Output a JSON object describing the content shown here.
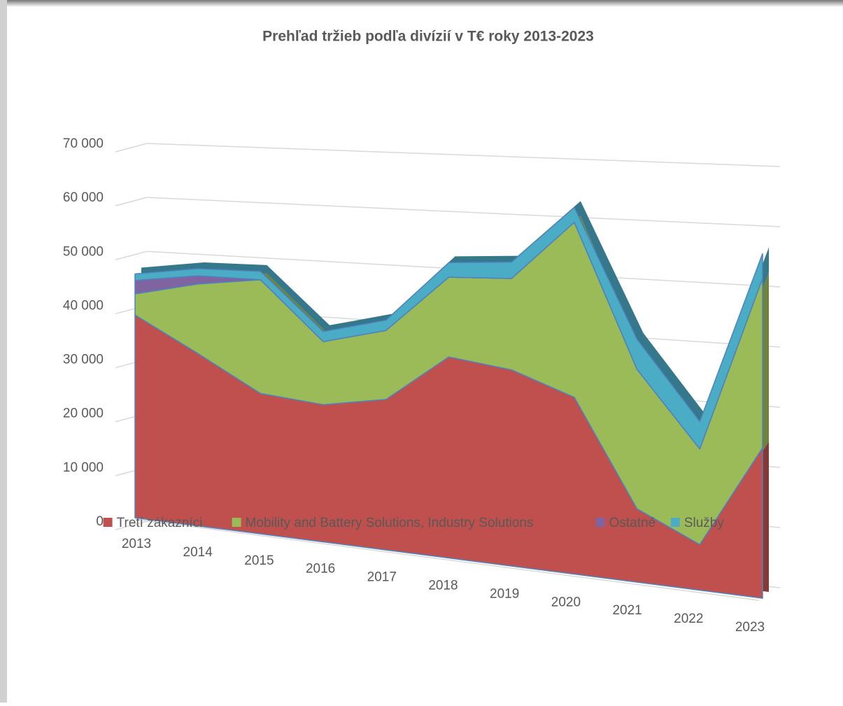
{
  "chart_data": {
    "type": "area3d",
    "title": "Prehľad tržieb podľa divízií v T€ roky 2013-2023",
    "categories": [
      "2013",
      "2014",
      "2015",
      "2016",
      "2017",
      "2018",
      "2019",
      "2020",
      "2021",
      "2022",
      "2023"
    ],
    "stacked": true,
    "series": [
      {
        "name": "Tretí zákazníci",
        "color": "#c0504d",
        "values": [
          37600,
          31500,
          25300,
          24400,
          26400,
          34800,
          33500,
          29800,
          12200,
          7500,
          24400
        ]
      },
      {
        "name": "Mobility and Battery Solutions, Industry Solutions",
        "color": "#9bbb59",
        "values": [
          3900,
          12700,
          20500,
          11200,
          12100,
          13800,
          15600,
          29500,
          23200,
          15700,
          27500
        ]
      },
      {
        "name": "Ostatné",
        "color": "#8064a2",
        "values": [
          2500,
          1500,
          0,
          0,
          0,
          0,
          0,
          0,
          0,
          0,
          0
        ]
      },
      {
        "name": "Služby",
        "color": "#4bacc6",
        "values": [
          1200,
          1300,
          1500,
          1800,
          1800,
          2500,
          2800,
          2500,
          5000,
          4500,
          4000
        ]
      }
    ],
    "ylim": [
      0,
      70000
    ],
    "yticks": [
      {
        "value": 0,
        "label": "0"
      },
      {
        "value": 10000,
        "label": "10 000"
      },
      {
        "value": 20000,
        "label": "20 000"
      },
      {
        "value": 30000,
        "label": "30 000"
      },
      {
        "value": 40000,
        "label": "40 000"
      },
      {
        "value": 50000,
        "label": "50 000"
      },
      {
        "value": 60000,
        "label": "60 000"
      },
      {
        "value": 70000,
        "label": "70 000"
      }
    ],
    "grid": true,
    "legend": "bottom"
  }
}
